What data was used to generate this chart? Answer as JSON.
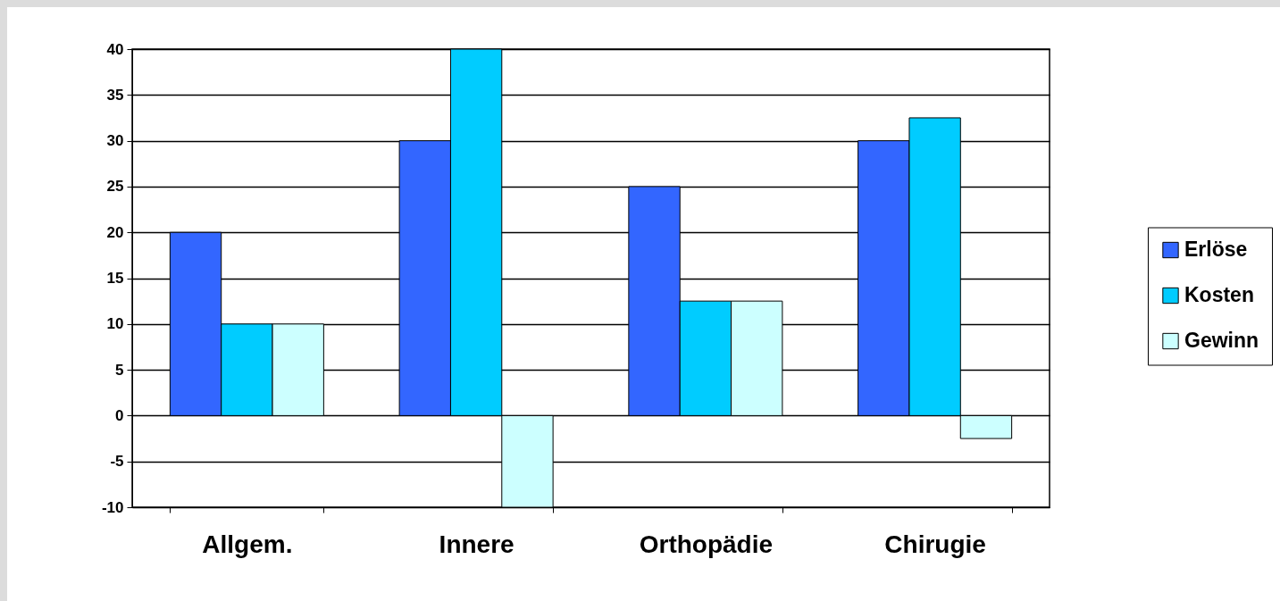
{
  "chart_data": {
    "type": "bar",
    "categories": [
      "Allgem.",
      "Innere",
      "Orthopädie",
      "Chirugie"
    ],
    "series": [
      {
        "name": "Erlöse",
        "color": "#3366ff",
        "values": [
          20,
          30,
          25,
          30
        ]
      },
      {
        "name": "Kosten",
        "color": "#00ccff",
        "values": [
          10,
          40,
          12.5,
          32.5
        ]
      },
      {
        "name": "Gewinn",
        "color": "#ccffff",
        "values": [
          10,
          -10,
          12.5,
          -2.5
        ]
      }
    ],
    "ylim": [
      -10,
      40
    ],
    "yticks": [
      -10,
      -5,
      0,
      5,
      10,
      15,
      20,
      25,
      30,
      35,
      40
    ],
    "grid": "y",
    "legend": "right"
  }
}
